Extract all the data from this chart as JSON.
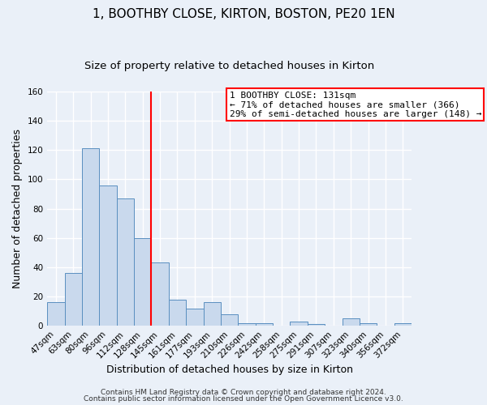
{
  "title": "1, BOOTHBY CLOSE, KIRTON, BOSTON, PE20 1EN",
  "subtitle": "Size of property relative to detached houses in Kirton",
  "xlabel": "Distribution of detached houses by size in Kirton",
  "ylabel": "Number of detached properties",
  "bin_labels": [
    "47sqm",
    "63sqm",
    "80sqm",
    "96sqm",
    "112sqm",
    "128sqm",
    "145sqm",
    "161sqm",
    "177sqm",
    "193sqm",
    "210sqm",
    "226sqm",
    "242sqm",
    "258sqm",
    "275sqm",
    "291sqm",
    "307sqm",
    "323sqm",
    "340sqm",
    "356sqm",
    "372sqm"
  ],
  "bar_values": [
    16,
    36,
    121,
    96,
    87,
    60,
    43,
    18,
    12,
    16,
    8,
    2,
    2,
    0,
    3,
    1,
    0,
    5,
    2,
    0,
    2
  ],
  "bar_color": "#c9d9ed",
  "bar_edge_color": "#5a8fc0",
  "vline_x": 5.5,
  "vline_color": "red",
  "annotation_title": "1 BOOTHBY CLOSE: 131sqm",
  "annotation_line1": "← 71% of detached houses are smaller (366)",
  "annotation_line2": "29% of semi-detached houses are larger (148) →",
  "annotation_box_color": "white",
  "annotation_box_edge": "red",
  "ylim": [
    0,
    160
  ],
  "yticks": [
    0,
    20,
    40,
    60,
    80,
    100,
    120,
    140,
    160
  ],
  "footer1": "Contains HM Land Registry data © Crown copyright and database right 2024.",
  "footer2": "Contains public sector information licensed under the Open Government Licence v3.0.",
  "bg_color": "#eaf0f8",
  "grid_color": "white",
  "title_fontsize": 11,
  "subtitle_fontsize": 9.5,
  "axis_label_fontsize": 9,
  "tick_fontsize": 7.5,
  "annotation_fontsize": 8,
  "footer_fontsize": 6.5
}
